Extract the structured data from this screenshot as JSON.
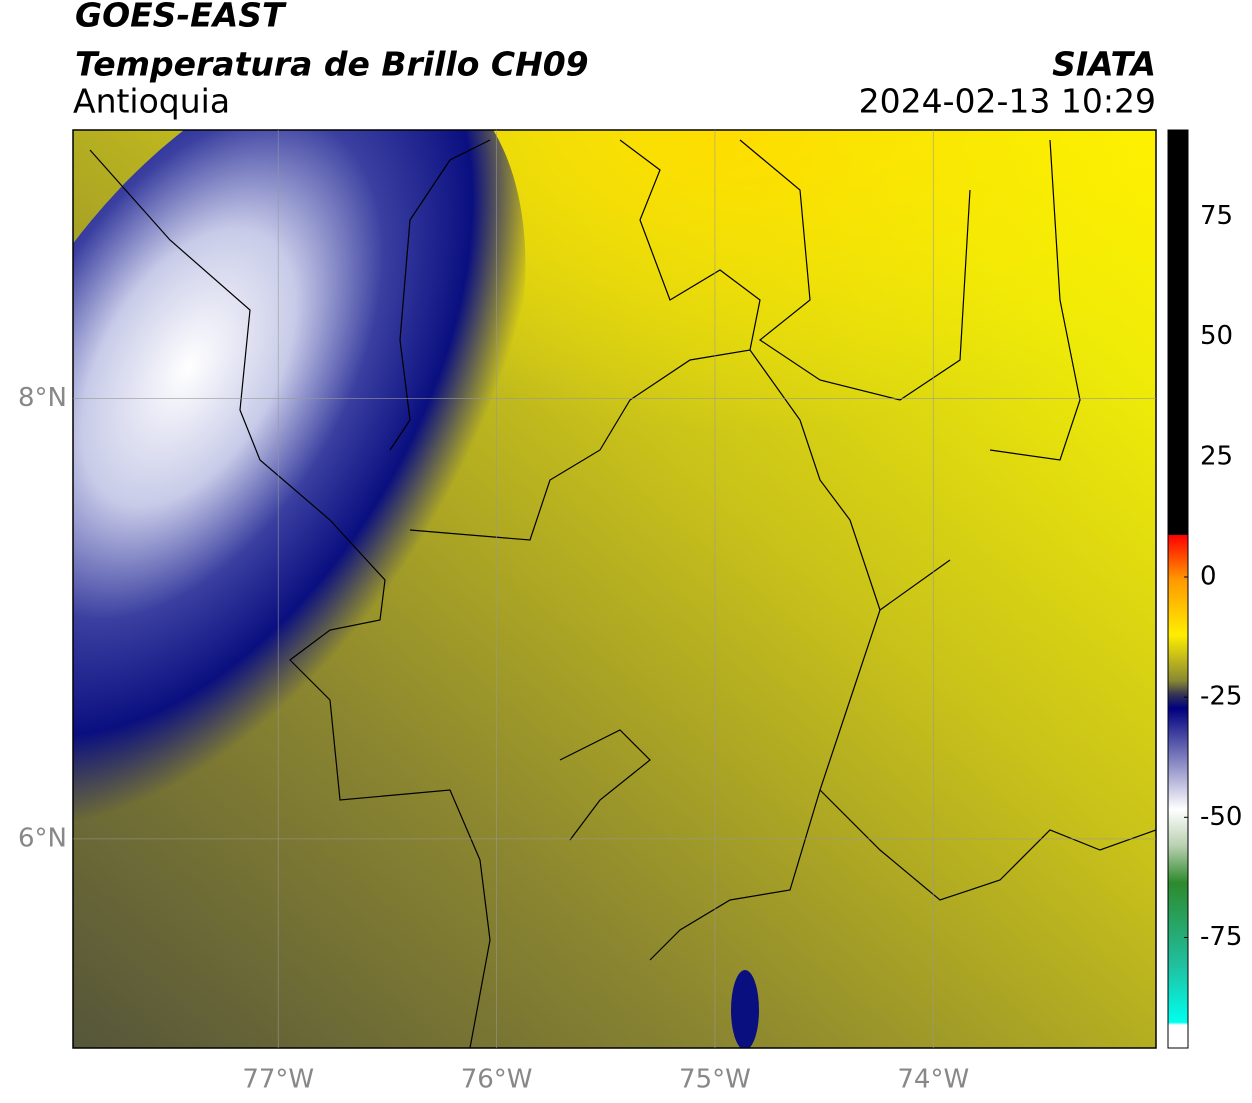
{
  "chart_data": {
    "type": "map",
    "title": "GOES-EAST",
    "subtitle": "Temperatura de Brillo CH09",
    "region": "Antioquia",
    "agency": "SIATA",
    "timestamp": "2024-02-13 10:29",
    "xlim": [
      -77.94,
      -72.98
    ],
    "ylim": [
      5.05,
      9.22
    ],
    "xticks": [
      {
        "value": -77,
        "label": "77°W"
      },
      {
        "value": -76,
        "label": "76°W"
      },
      {
        "value": -75,
        "label": "75°W"
      },
      {
        "value": -74,
        "label": "74°W"
      }
    ],
    "yticks": [
      {
        "value": 8,
        "label": "8°N"
      },
      {
        "value": 6,
        "label": "6°N"
      }
    ],
    "grid": true,
    "colorbar": {
      "lim": [
        -98,
        93
      ],
      "ticks": [
        75,
        50,
        25,
        0,
        -25,
        -50,
        -75
      ]
    }
  }
}
